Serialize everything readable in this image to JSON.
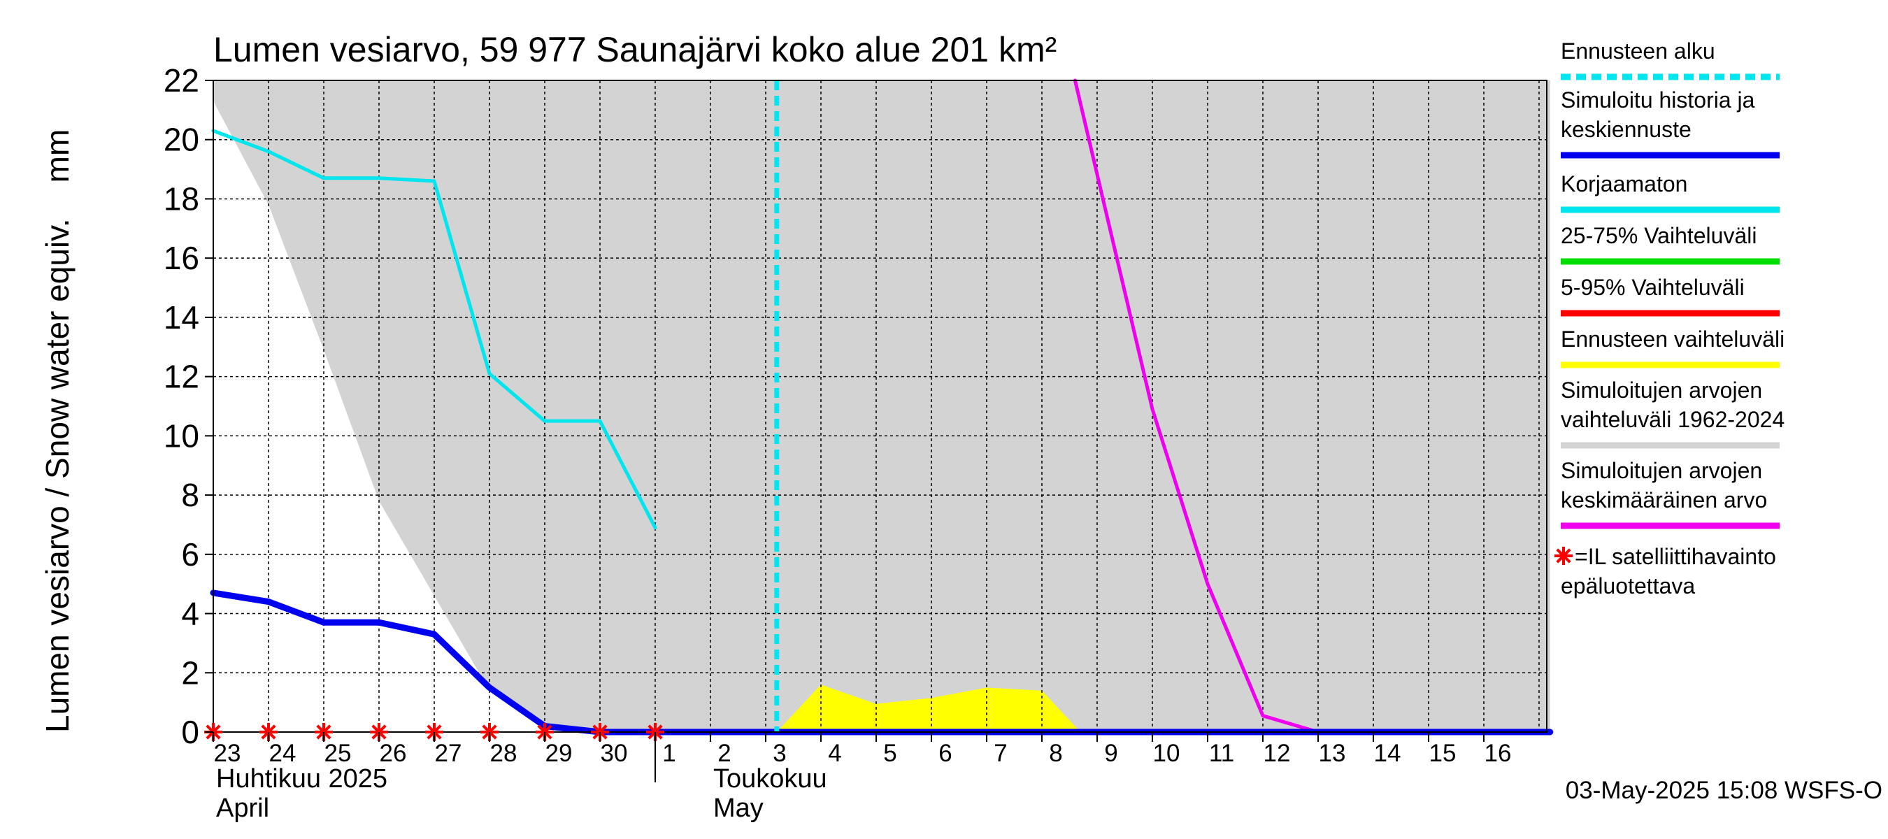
{
  "chart_data": {
    "type": "line",
    "title": "Lumen vesiarvo, 59 977 Saunajärvi koko alue 201 km²",
    "ylabel": "Lumen vesiarvo / Snow water equiv.    mm",
    "ylim": [
      0,
      22
    ],
    "yticks": [
      0,
      2,
      4,
      6,
      8,
      10,
      12,
      14,
      16,
      18,
      20,
      22
    ],
    "xlim": [
      0,
      24.2
    ],
    "x_tick_labels": [
      {
        "x": 0,
        "label": "23"
      },
      {
        "x": 1,
        "label": "24"
      },
      {
        "x": 2,
        "label": "25"
      },
      {
        "x": 3,
        "label": "26"
      },
      {
        "x": 4,
        "label": "27"
      },
      {
        "x": 5,
        "label": "28"
      },
      {
        "x": 6,
        "label": "29"
      },
      {
        "x": 7,
        "label": "30"
      },
      {
        "x": 8,
        "label": "1"
      },
      {
        "x": 9,
        "label": "2"
      },
      {
        "x": 10,
        "label": "3"
      },
      {
        "x": 11,
        "label": "4"
      },
      {
        "x": 12,
        "label": "5"
      },
      {
        "x": 13,
        "label": "6"
      },
      {
        "x": 14,
        "label": "7"
      },
      {
        "x": 15,
        "label": "8"
      },
      {
        "x": 16,
        "label": "9"
      },
      {
        "x": 17,
        "label": "10"
      },
      {
        "x": 18,
        "label": "11"
      },
      {
        "x": 19,
        "label": "12"
      },
      {
        "x": 20,
        "label": "13"
      },
      {
        "x": 21,
        "label": "14"
      },
      {
        "x": 22,
        "label": "15"
      },
      {
        "x": 23,
        "label": "16"
      }
    ],
    "month_labels": [
      {
        "x": 0,
        "line1": "Huhtikuu  2025",
        "line2": "April"
      },
      {
        "x": 9.0,
        "line1": "Toukokuu",
        "line2": "May"
      }
    ],
    "month_divider_x": 8,
    "forecast_start_x": 10.2,
    "series": [
      {
        "name": "Simuloitujen arvojen vaihteluväli 1962-2024",
        "kind": "band",
        "color": "#d3d3d3",
        "upper": [
          [
            0,
            22
          ],
          [
            24.2,
            22
          ]
        ],
        "lower": [
          [
            0,
            21.3
          ],
          [
            1,
            17.8
          ],
          [
            2,
            12.9
          ],
          [
            3,
            7.8
          ],
          [
            4,
            4.6
          ],
          [
            5,
            1.4
          ],
          [
            6,
            0.1
          ],
          [
            7,
            0
          ],
          [
            24.2,
            0
          ]
        ]
      },
      {
        "name": "Ennusteen vaihteluväli",
        "kind": "band",
        "color": "#ffff00",
        "upper": [
          [
            10.2,
            0
          ],
          [
            11,
            1.6
          ],
          [
            12,
            0.95
          ],
          [
            13,
            1.15
          ],
          [
            14,
            1.5
          ],
          [
            15,
            1.4
          ],
          [
            15.7,
            0
          ]
        ],
        "lower": [
          [
            10.2,
            0
          ],
          [
            15.7,
            0
          ]
        ]
      },
      {
        "name": "Korjaamaton",
        "kind": "line",
        "color": "#00e5ee",
        "width": 5,
        "points": [
          [
            0,
            20.3
          ],
          [
            1,
            19.6
          ],
          [
            2,
            18.7
          ],
          [
            3,
            18.7
          ],
          [
            4,
            18.6
          ],
          [
            5,
            12.1
          ],
          [
            6,
            10.5
          ],
          [
            7,
            10.5
          ],
          [
            8,
            6.9
          ]
        ]
      },
      {
        "name": "Simuloitujen arvojen keskimääräinen arvo",
        "kind": "line",
        "color": "#ee00ee",
        "width": 5,
        "points": [
          [
            15.6,
            22
          ],
          [
            17,
            10.9
          ],
          [
            18,
            5.0
          ],
          [
            19,
            0.55
          ],
          [
            20,
            0
          ],
          [
            24.2,
            0
          ]
        ]
      },
      {
        "name": "Simuloitu historia ja keskiennuste",
        "kind": "line",
        "color": "#0000ee",
        "width": 9,
        "points": [
          [
            0,
            4.7
          ],
          [
            1,
            4.4
          ],
          [
            2,
            3.7
          ],
          [
            3,
            3.7
          ],
          [
            4,
            3.3
          ],
          [
            5,
            1.5
          ],
          [
            6,
            0.2
          ],
          [
            7,
            0
          ],
          [
            24.2,
            0
          ]
        ]
      }
    ],
    "satellite_observations": {
      "name": "=IL satelliittihavainto epäluotettava",
      "color": "#ff0000",
      "points": [
        [
          0,
          0
        ],
        [
          1,
          0
        ],
        [
          2,
          0
        ],
        [
          3,
          0
        ],
        [
          4,
          0
        ],
        [
          5,
          0
        ],
        [
          6,
          0
        ],
        [
          7,
          0
        ],
        [
          8,
          0
        ]
      ]
    }
  },
  "legend": {
    "items": [
      {
        "lines": [
          "Ennusteen alku"
        ],
        "color": "#00e5ee",
        "style": "dashed"
      },
      {
        "lines": [
          "Simuloitu historia ja",
          "keskiennuste"
        ],
        "color": "#0000ee",
        "style": "solid"
      },
      {
        "lines": [
          "Korjaamaton"
        ],
        "color": "#00e5ee",
        "style": "solid"
      },
      {
        "lines": [
          "25-75% Vaihteluväli"
        ],
        "color": "#00dd00",
        "style": "solid"
      },
      {
        "lines": [
          "5-95% Vaihteluväli"
        ],
        "color": "#ff0000",
        "style": "solid"
      },
      {
        "lines": [
          "Ennusteen vaihteluväli"
        ],
        "color": "#ffff00",
        "style": "solid"
      },
      {
        "lines": [
          "Simuloitujen arvojen",
          "vaihteluväli 1962-2024"
        ],
        "color": "#d3d3d3",
        "style": "solid"
      },
      {
        "lines": [
          "Simuloitujen arvojen",
          "keskimääräinen arvo"
        ],
        "color": "#ee00ee",
        "style": "solid"
      }
    ],
    "marker_lines": [
      "=IL satelliittihavainto",
      "epäluotettava"
    ]
  },
  "timestamp": "03-May-2025 15:08 WSFS-O"
}
